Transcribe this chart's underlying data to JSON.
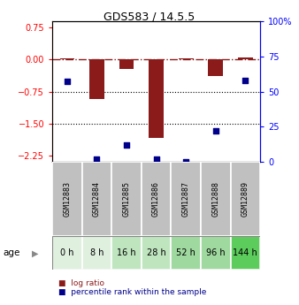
{
  "title": "GDS583 / 14.5.5",
  "samples": [
    "GSM12883",
    "GSM12884",
    "GSM12885",
    "GSM12886",
    "GSM12887",
    "GSM12888",
    "GSM12889"
  ],
  "ages": [
    "0 h",
    "8 h",
    "16 h",
    "28 h",
    "52 h",
    "96 h",
    "144 h"
  ],
  "log_ratio": [
    0.03,
    -0.92,
    -0.22,
    -1.85,
    0.02,
    -0.38,
    0.05
  ],
  "percentile_rank": [
    57,
    2,
    12,
    2,
    0,
    22,
    58
  ],
  "bar_color": "#8B1A1A",
  "dot_color": "#00008B",
  "ylim_left": [
    -2.4,
    0.9
  ],
  "ylim_right": [
    0,
    100
  ],
  "yticks_left": [
    0.75,
    0,
    -0.75,
    -1.5,
    -2.25
  ],
  "yticks_right": [
    100,
    75,
    50,
    25,
    0
  ],
  "dotted_lines": [
    -0.75,
    -1.5
  ],
  "age_colors": [
    "#dff0df",
    "#dff0df",
    "#bfe5bf",
    "#bfe5bf",
    "#9fd99f",
    "#9fd99f",
    "#5ccc5c"
  ],
  "bar_width": 0.5,
  "sample_bg": "#c0c0c0"
}
